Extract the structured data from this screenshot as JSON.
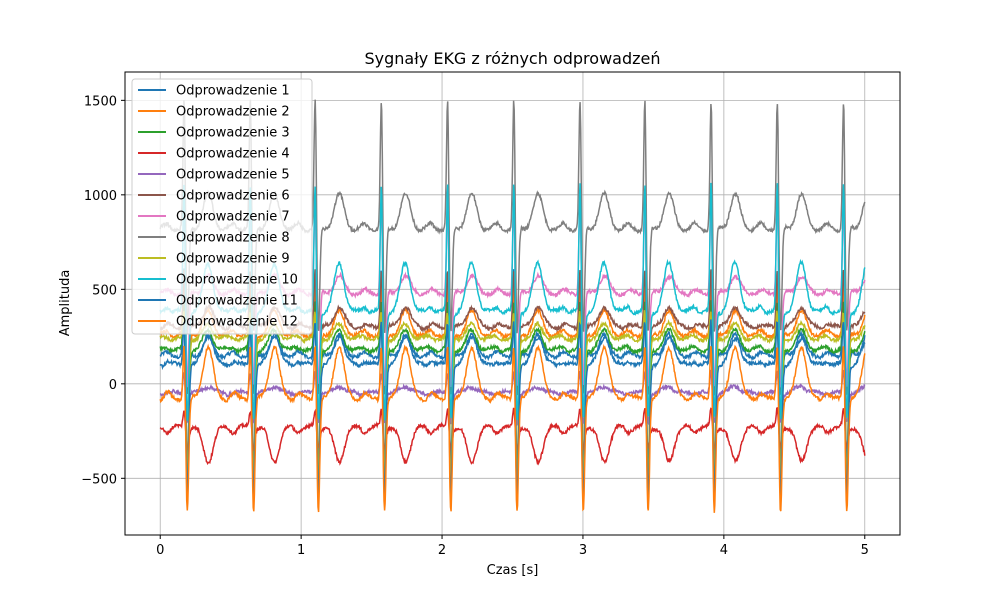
{
  "chart_data": {
    "type": "line",
    "title": "Sygnały EKG z różnych odprowadzeń",
    "xlabel": "Czas [s]",
    "ylabel": "Amplituda",
    "xlim": [
      -0.25,
      5.25
    ],
    "ylim": [
      -800,
      1650
    ],
    "xticks": [
      0,
      1,
      2,
      3,
      4,
      5
    ],
    "yticks": [
      -500,
      0,
      500,
      1000,
      1500
    ],
    "xtick_labels": [
      "0",
      "1",
      "2",
      "3",
      "4",
      "5"
    ],
    "ytick_labels": [
      "−500",
      "0",
      "500",
      "1000",
      "1500"
    ],
    "grid": true,
    "legend_position": "top-left",
    "beat_times": [
      0.17,
      0.64,
      1.1,
      1.57,
      2.04,
      2.51,
      2.98,
      3.44,
      3.91,
      4.38,
      4.85
    ],
    "series": [
      {
        "name": "Odprowadzenie 1",
        "color": "#1f77b4",
        "baseline": 150,
        "r_peak": 650,
        "s_trough": -450,
        "t_wave": 90
      },
      {
        "name": "Odprowadzenie 2",
        "color": "#ff7f0e",
        "baseline": 260,
        "r_peak": 580,
        "s_trough": -600,
        "t_wave": 120
      },
      {
        "name": "Odprowadzenie 3",
        "color": "#2ca02c",
        "baseline": 180,
        "r_peak": 480,
        "s_trough": -580,
        "t_wave": 100
      },
      {
        "name": "Odprowadzenie 4",
        "color": "#d62728",
        "baseline": -230,
        "r_peak": -130,
        "s_trough": -340,
        "t_wave": -180
      },
      {
        "name": "Odprowadzenie 5",
        "color": "#9467bd",
        "baseline": -50,
        "r_peak": 80,
        "s_trough": -200,
        "t_wave": 40
      },
      {
        "name": "Odprowadzenie 6",
        "color": "#8c564b",
        "baseline": 300,
        "r_peak": 640,
        "s_trough": -60,
        "t_wave": 110
      },
      {
        "name": "Odprowadzenie 7",
        "color": "#e377c2",
        "baseline": 480,
        "r_peak": 1000,
        "s_trough": -30,
        "t_wave": 90
      },
      {
        "name": "Odprowadzenie 8",
        "color": "#7f7f7f",
        "baseline": 820,
        "r_peak": 1540,
        "s_trough": 250,
        "t_wave": 180
      },
      {
        "name": "Odprowadzenie 9",
        "color": "#bcbd22",
        "baseline": 240,
        "r_peak": 420,
        "s_trough": -520,
        "t_wave": 70
      },
      {
        "name": "Odprowadzenie 10",
        "color": "#17becf",
        "baseline": 380,
        "r_peak": 1100,
        "s_trough": -200,
        "t_wave": 260
      },
      {
        "name": "Odprowadzenie 11",
        "color": "#1f77b4",
        "baseline": 100,
        "r_peak": 380,
        "s_trough": -600,
        "t_wave": 170
      },
      {
        "name": "Odprowadzenie 12",
        "color": "#ff7f0e",
        "baseline": -80,
        "r_peak": 250,
        "s_trough": -680,
        "t_wave": 280
      }
    ]
  }
}
